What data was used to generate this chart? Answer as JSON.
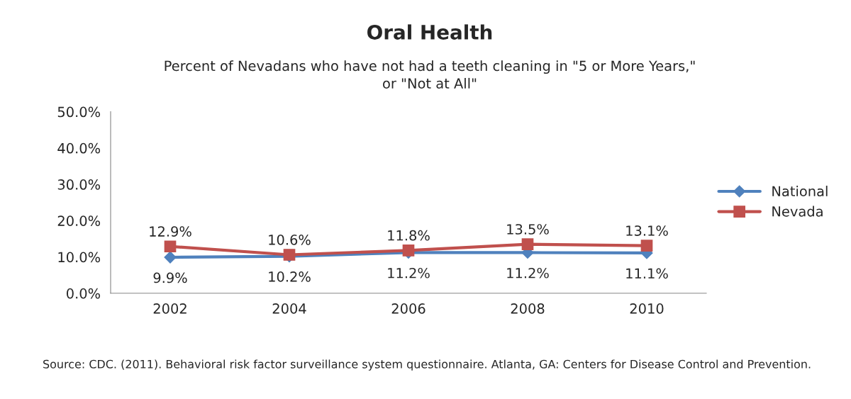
{
  "chart_data": {
    "type": "line",
    "title": "Oral Health",
    "subtitle": "Percent of Nevadans who have not had a teeth cleaning in \"5 or More Years,\"\nor \"Not at All\"",
    "categories": [
      "2002",
      "2004",
      "2006",
      "2008",
      "2010"
    ],
    "series": [
      {
        "name": "National",
        "color": "#4f81bd",
        "marker": "diamond",
        "values": [
          9.9,
          10.2,
          11.2,
          11.2,
          11.1
        ],
        "value_labels": [
          "9.9%",
          "10.2%",
          "11.2%",
          "11.2%",
          "11.1%"
        ]
      },
      {
        "name": "Nevada",
        "color": "#c0504d",
        "marker": "square",
        "values": [
          12.9,
          10.6,
          11.8,
          13.5,
          13.1
        ],
        "value_labels": [
          "12.9%",
          "10.6%",
          "11.8%",
          "13.5%",
          "13.1%"
        ]
      }
    ],
    "ylim": [
      0,
      50
    ],
    "yticks": [
      {
        "value": 0,
        "label": "0.0%"
      },
      {
        "value": 10,
        "label": "10.0%"
      },
      {
        "value": 20,
        "label": "20.0%"
      },
      {
        "value": 30,
        "label": "30.0%"
      },
      {
        "value": 40,
        "label": "40.0%"
      },
      {
        "value": 50,
        "label": "50.0%"
      }
    ],
    "grid": false,
    "legend": "right",
    "line_style": "solid",
    "annotations": [
      "Source: CDC. (2011). Behavioral risk factor surveillance system questionnaire. Atlanta, GA: Centers for Disease Control and Prevention."
    ]
  }
}
